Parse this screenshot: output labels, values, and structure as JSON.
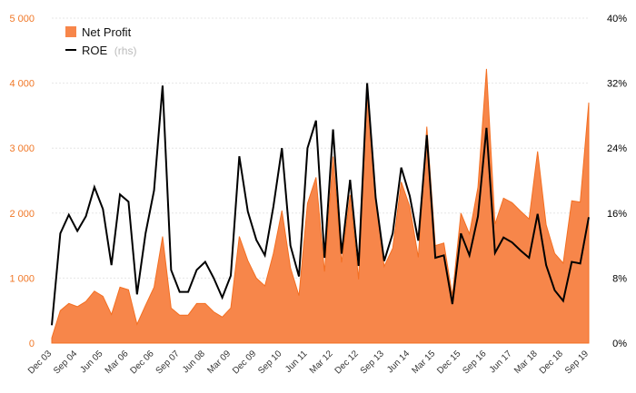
{
  "colors": {
    "area_fill": "#f7864a",
    "area_stroke": "#f36f22",
    "line": "#000000",
    "left_axis_text": "#f07828",
    "right_axis_text": "#000000",
    "legend_unit_text": "#bbbbbb"
  },
  "legend": {
    "net_profit": "Net Profit",
    "roe": "ROE",
    "roe_unit": "(rhs)"
  },
  "chart_data": {
    "type": "area",
    "legend_position": "top-left",
    "grid": true,
    "ylim_left": [
      0,
      5000
    ],
    "ylim_right": [
      0,
      40
    ],
    "left_ticks": [
      "0",
      "1 000",
      "2 000",
      "3 000",
      "4 000",
      "5 000"
    ],
    "right_ticks": [
      "0%",
      "8%",
      "16%",
      "24%",
      "32%",
      "40%"
    ],
    "x_ticks": [
      {
        "label": "Dec 03",
        "index": 0
      },
      {
        "label": "Sep 04",
        "index": 3
      },
      {
        "label": "Jun 05",
        "index": 6
      },
      {
        "label": "Mar 06",
        "index": 9
      },
      {
        "label": "Dec 06",
        "index": 12
      },
      {
        "label": "Sep 07",
        "index": 15
      },
      {
        "label": "Jun 08",
        "index": 18
      },
      {
        "label": "Mar 09",
        "index": 21
      },
      {
        "label": "Dec 09",
        "index": 24
      },
      {
        "label": "Sep 10",
        "index": 27
      },
      {
        "label": "Jun 11",
        "index": 30
      },
      {
        "label": "Mar 12",
        "index": 33
      },
      {
        "label": "Dec 12",
        "index": 36
      },
      {
        "label": "Sep 13",
        "index": 39
      },
      {
        "label": "Jun 14",
        "index": 42
      },
      {
        "label": "Mar 15",
        "index": 45
      },
      {
        "label": "Dec 15",
        "index": 48
      },
      {
        "label": "Sep 16",
        "index": 51
      },
      {
        "label": "Jun 17",
        "index": 54
      },
      {
        "label": "Mar 18",
        "index": 57
      },
      {
        "label": "Dec 18",
        "index": 60
      },
      {
        "label": "Sep 19",
        "index": 63
      }
    ],
    "series": [
      {
        "name": "Net Profit",
        "axis": "left",
        "type": "area",
        "values": [
          80,
          500,
          610,
          560,
          640,
          800,
          720,
          440,
          860,
          820,
          290,
          580,
          860,
          1640,
          540,
          430,
          430,
          610,
          610,
          480,
          400,
          540,
          1640,
          1270,
          1000,
          880,
          1380,
          2040,
          1160,
          730,
          2150,
          2550,
          1100,
          2870,
          1240,
          2280,
          980,
          4000,
          2230,
          1180,
          1460,
          2480,
          2100,
          1320,
          3330,
          1500,
          1540,
          730,
          2000,
          1680,
          2400,
          4220,
          1830,
          2230,
          2160,
          2030,
          1910,
          2950,
          1820,
          1380,
          1230,
          2190,
          2170,
          3700
        ]
      },
      {
        "name": "ROE",
        "axis": "right",
        "type": "line",
        "values": [
          2.2,
          13.5,
          15.8,
          13.8,
          15.6,
          19.2,
          16.5,
          9.6,
          18.3,
          17.4,
          6.0,
          13.5,
          18.8,
          31.7,
          9.0,
          6.3,
          6.3,
          9.0,
          10.0,
          8.0,
          5.6,
          8.3,
          23.0,
          16.2,
          12.7,
          10.8,
          16.8,
          24.0,
          12.0,
          8.2,
          24.0,
          27.4,
          10.5,
          26.3,
          11.0,
          20.1,
          9.5,
          32.0,
          17.9,
          10.1,
          13.5,
          21.6,
          18.1,
          12.6,
          25.6,
          10.5,
          10.8,
          4.8,
          13.5,
          10.8,
          15.6,
          26.5,
          11.1,
          13.0,
          12.4,
          11.4,
          10.5,
          15.9,
          9.6,
          6.5,
          5.2,
          10.0,
          9.8,
          15.5
        ]
      }
    ]
  }
}
